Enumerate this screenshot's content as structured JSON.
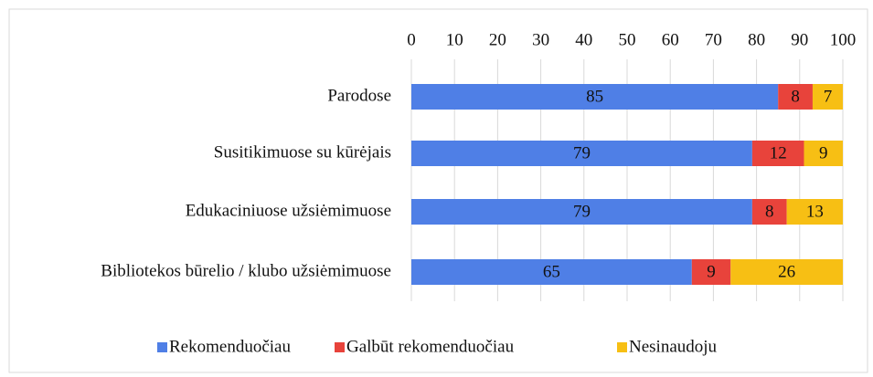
{
  "chart_data": {
    "type": "bar",
    "orientation": "horizontal",
    "stacked": true,
    "categories": [
      "Parodose",
      "Susitikimuose su kūrėjais",
      "Edukaciniuose užsiėmimuose",
      "Bibliotekos būrelio / klubo užsiėmimuose"
    ],
    "series": [
      {
        "name": "Rekomenduočiau",
        "color": "#4f7fe6",
        "values": [
          85,
          79,
          79,
          65
        ]
      },
      {
        "name": "Galbūt rekomenduočiau",
        "color": "#e8433b",
        "values": [
          8,
          12,
          8,
          9
        ]
      },
      {
        "name": "Nesinaudoju",
        "color": "#f7bf14",
        "values": [
          7,
          9,
          13,
          26
        ]
      }
    ],
    "xlim": [
      0,
      100
    ],
    "xticks": [
      0,
      10,
      20,
      30,
      40,
      50,
      60,
      70,
      80,
      90,
      100
    ],
    "grid": true,
    "legend": "bottom"
  }
}
